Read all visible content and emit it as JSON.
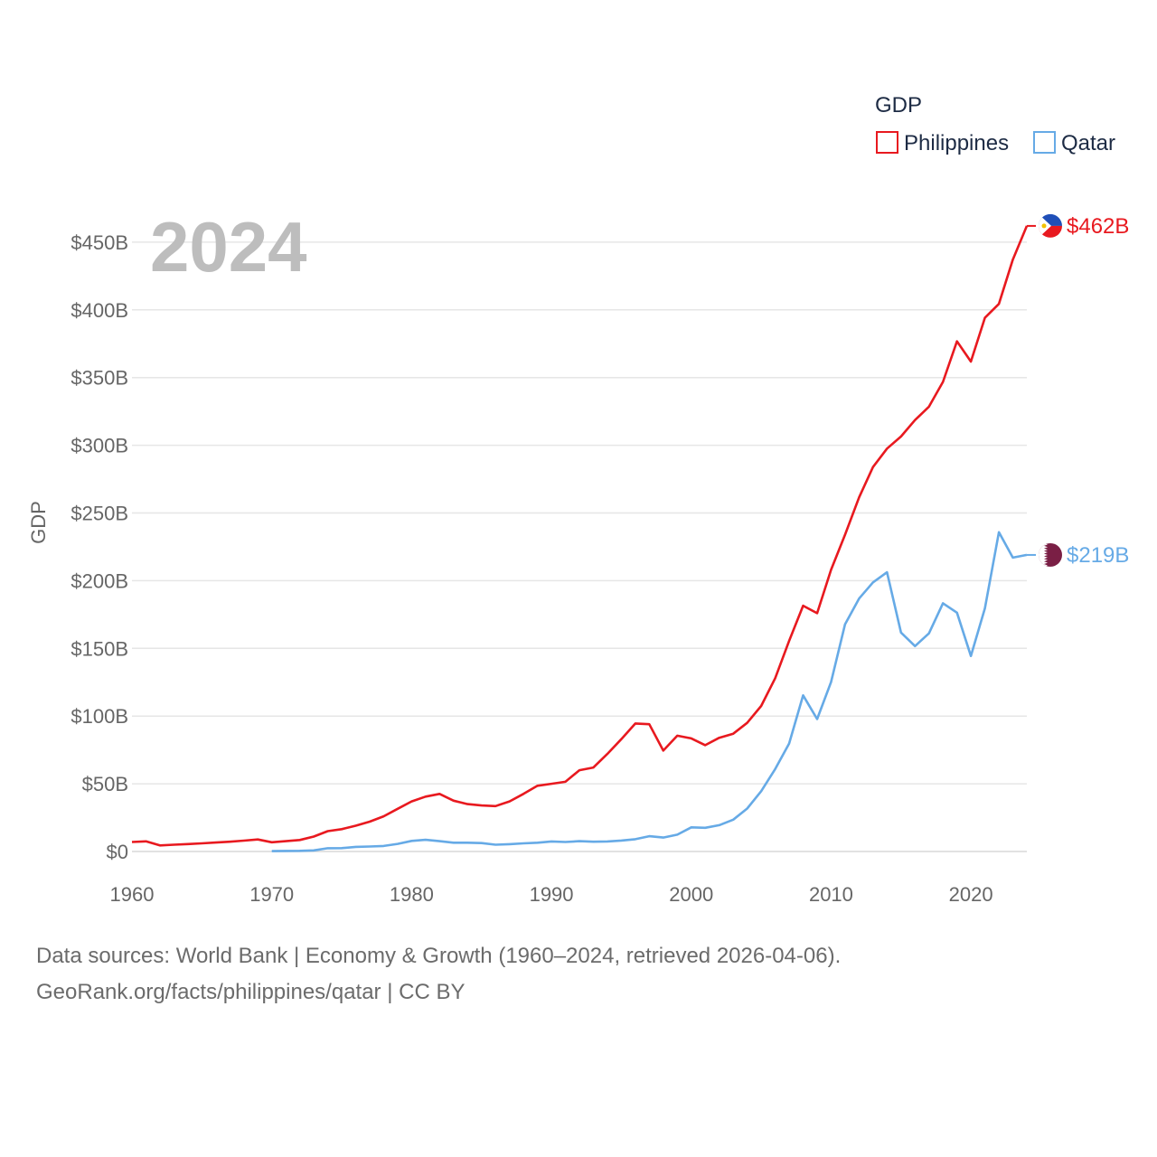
{
  "legend": {
    "title": "GDP"
  },
  "year_label": "2024",
  "source": {
    "line1": "Data sources: World Bank | Economy & Growth (1960–2024, retrieved 2026-04-06).",
    "line2": "GeoRank.org/facts/philippines/qatar | CC BY"
  },
  "chart_data": {
    "type": "line",
    "title": "GDP",
    "xlabel": "",
    "ylabel": "GDP",
    "xlim": [
      1960,
      2024
    ],
    "ylim": [
      0,
      462
    ],
    "y_unit": "billion USD",
    "x_ticks": [
      1960,
      1970,
      1980,
      1990,
      2000,
      2010,
      2020
    ],
    "y_ticks": [
      0,
      50,
      100,
      150,
      200,
      250,
      300,
      350,
      400,
      450
    ],
    "y_tick_labels": [
      "$0",
      "$50B",
      "$100B",
      "$150B",
      "$200B",
      "$250B",
      "$300B",
      "$350B",
      "$400B",
      "$450B"
    ],
    "grid": true,
    "legend_position": "top-right",
    "series": [
      {
        "name": "Philippines",
        "color": "#e8191f",
        "end_label": "$462B",
        "flag_icon": "philippines-flag-icon",
        "x": [
          1960,
          1961,
          1962,
          1963,
          1964,
          1965,
          1966,
          1967,
          1968,
          1969,
          1970,
          1971,
          1972,
          1973,
          1974,
          1975,
          1976,
          1977,
          1978,
          1979,
          1980,
          1981,
          1982,
          1983,
          1984,
          1985,
          1986,
          1987,
          1988,
          1989,
          1990,
          1991,
          1992,
          1993,
          1994,
          1995,
          1996,
          1997,
          1998,
          1999,
          2000,
          2001,
          2002,
          2003,
          2004,
          2005,
          2006,
          2007,
          2008,
          2009,
          2010,
          2011,
          2012,
          2013,
          2014,
          2015,
          2016,
          2017,
          2018,
          2019,
          2020,
          2021,
          2022,
          2023,
          2024
        ],
        "values": [
          7,
          7.5,
          4.5,
          5,
          5.5,
          6,
          6.6,
          7.2,
          8,
          8.9,
          6.8,
          7.6,
          8.5,
          11,
          15,
          16.5,
          19,
          22,
          26,
          31.5,
          37,
          40.5,
          42.5,
          37.5,
          35,
          34,
          33.5,
          37,
          42.5,
          48.5,
          50,
          51.5,
          60,
          62,
          72,
          83,
          94.5,
          94,
          74.5,
          85.5,
          83.5,
          78.5,
          84,
          87,
          95,
          107.5,
          128,
          155.5,
          181.5,
          176,
          208,
          234,
          261.5,
          283.9,
          297.5,
          306.5,
          318.6,
          328.5,
          346.8,
          376.8,
          361.8,
          394.1,
          404.4,
          437.1,
          462
        ]
      },
      {
        "name": "Qatar",
        "color": "#66aae6",
        "end_label": "$219B",
        "flag_icon": "qatar-flag-icon",
        "x": [
          1970,
          1971,
          1972,
          1973,
          1974,
          1975,
          1976,
          1977,
          1978,
          1979,
          1980,
          1981,
          1982,
          1983,
          1984,
          1985,
          1986,
          1987,
          1988,
          1989,
          1990,
          1991,
          1992,
          1993,
          1994,
          1995,
          1996,
          1997,
          1998,
          1999,
          2000,
          2001,
          2002,
          2003,
          2004,
          2005,
          2006,
          2007,
          2008,
          2009,
          2010,
          2011,
          2012,
          2013,
          2014,
          2015,
          2016,
          2017,
          2018,
          2019,
          2020,
          2021,
          2022,
          2023,
          2024
        ],
        "values": [
          0.3,
          0.4,
          0.5,
          0.8,
          2.4,
          2.5,
          3.4,
          3.7,
          4.1,
          5.6,
          7.8,
          8.6,
          7.6,
          6.5,
          6.5,
          6.2,
          5,
          5.4,
          6,
          6.5,
          7.4,
          7,
          7.6,
          7.2,
          7.4,
          8.1,
          9.1,
          11.3,
          10.3,
          12.4,
          17.8,
          17.5,
          19.4,
          23.5,
          31.7,
          44.5,
          60.9,
          79.7,
          115.3,
          97.8,
          125.1,
          167.8,
          186.8,
          198.7,
          206.2,
          161.7,
          151.7,
          161.1,
          183.3,
          176.4,
          144.4,
          179.6,
          235.8,
          217.0,
          219
        ]
      }
    ]
  }
}
